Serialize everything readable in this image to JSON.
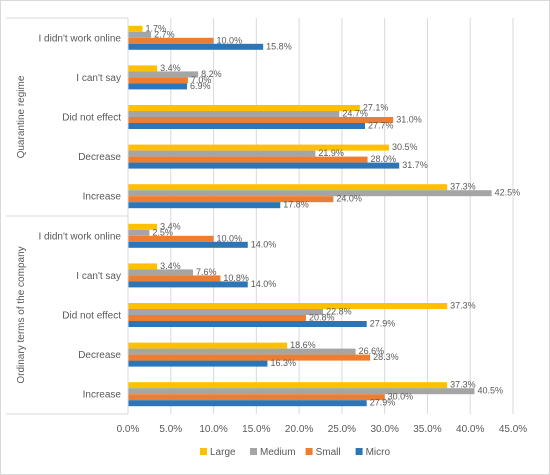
{
  "chart_data": {
    "type": "bar",
    "orientation": "horizontal",
    "xlim": [
      0,
      45
    ],
    "x_ticks": [
      "0.0%",
      "5.0%",
      "10.0%",
      "15.0%",
      "20.0%",
      "25.0%",
      "30.0%",
      "35.0%",
      "40.0%",
      "45.0%"
    ],
    "grid": "vertical",
    "legend_position": "bottom",
    "series": [
      {
        "name": "Large",
        "color": "#FFC000"
      },
      {
        "name": "Medium",
        "color": "#A5A5A5"
      },
      {
        "name": "Small",
        "color": "#ED7D31"
      },
      {
        "name": "Micro",
        "color": "#2E75B6"
      }
    ],
    "groups": [
      {
        "name": "Quarantine regime",
        "categories": [
          {
            "label": "I didn't work online",
            "values": [
              1.7,
              2.7,
              10.0,
              15.8
            ],
            "labels": [
              "1.7%",
              "2.7%",
              "10.0%",
              "15.8%"
            ]
          },
          {
            "label": "I can't say",
            "values": [
              3.4,
              8.2,
              7.0,
              6.9
            ],
            "labels": [
              "3.4%",
              "8.2%",
              "7.0%",
              "6.9%"
            ]
          },
          {
            "label": "Did not effect",
            "values": [
              27.1,
              24.7,
              31.0,
              27.7
            ],
            "labels": [
              "27.1%",
              "24.7%",
              "31.0%",
              "27.7%"
            ]
          },
          {
            "label": "Decrease",
            "values": [
              30.5,
              21.9,
              28.0,
              31.7
            ],
            "labels": [
              "30.5%",
              "21.9%",
              "28.0%",
              "31.7%"
            ]
          },
          {
            "label": "Increase",
            "values": [
              37.3,
              42.5,
              24.0,
              17.8
            ],
            "labels": [
              "37.3%",
              "42.5%",
              "24.0%",
              "17.8%"
            ]
          }
        ]
      },
      {
        "name": "Ordinary terms of the company",
        "categories": [
          {
            "label": "I didn't work online",
            "values": [
              3.4,
              2.5,
              10.0,
              14.0
            ],
            "labels": [
              "3.4%",
              "2.5%",
              "10.0%",
              "14.0%"
            ]
          },
          {
            "label": "I can't say",
            "values": [
              3.4,
              7.6,
              10.8,
              14.0
            ],
            "labels": [
              "3.4%",
              "7.6%",
              "10.8%",
              "14.0%"
            ]
          },
          {
            "label": "Did not effect",
            "values": [
              37.3,
              22.8,
              20.8,
              27.9
            ],
            "labels": [
              "37.3%",
              "22.8%",
              "20.8%",
              "27.9%"
            ]
          },
          {
            "label": "Decrease",
            "values": [
              18.6,
              26.6,
              28.3,
              16.3
            ],
            "labels": [
              "18.6%",
              "26.6%",
              "28.3%",
              "16.3%"
            ]
          },
          {
            "label": "Increase",
            "values": [
              37.3,
              40.5,
              30.0,
              27.9
            ],
            "labels": [
              "37.3%",
              "40.5%",
              "30.0%",
              "27.9%"
            ]
          }
        ]
      }
    ]
  }
}
